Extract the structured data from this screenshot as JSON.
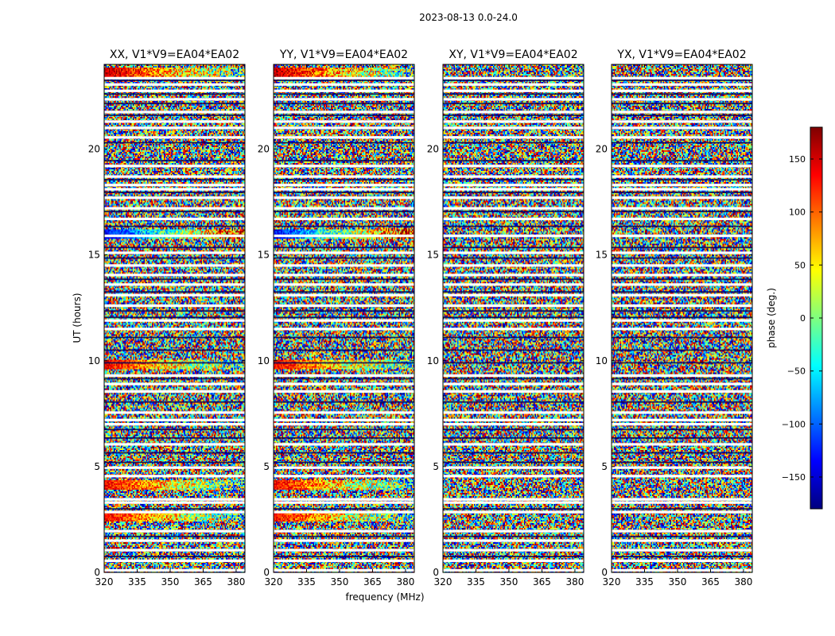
{
  "figure_title": "2023-08-13 0.0-24.0",
  "xlabel": "frequency (MHz)",
  "ylabel": "UT (hours)",
  "colorbar": {
    "label": "phase (deg.)",
    "range": [
      -180,
      180
    ],
    "ticks": [
      "150",
      "100",
      "50",
      "0",
      "−50",
      "−100",
      "−150"
    ],
    "tick_values": [
      150,
      100,
      50,
      0,
      -50,
      -100,
      -150
    ],
    "colormap": "jet",
    "colors": [
      "#00007f",
      "#0000ff",
      "#007fff",
      "#00ffff",
      "#7fff7f",
      "#ffff00",
      "#ff7f00",
      "#ff0000",
      "#7f0000"
    ]
  },
  "chart_data": [
    {
      "type": "heatmap",
      "title": "XX, V1*V9=EA04*EA02",
      "x_ticks": [
        "320",
        "335",
        "350",
        "365",
        "380"
      ],
      "x_tick_values": [
        320,
        335,
        350,
        365,
        380
      ],
      "xlim": [
        320,
        384
      ],
      "y_ticks": [
        "0",
        "5",
        "10",
        "15",
        "20"
      ],
      "y_tick_values": [
        0,
        5,
        10,
        15,
        20
      ],
      "ylim": [
        0,
        24
      ],
      "coherent_bands_hours": [
        23.6,
        16.0,
        9.8,
        4.1,
        2.6
      ]
    },
    {
      "type": "heatmap",
      "title": "YY, V1*V9=EA04*EA02",
      "x_ticks": [
        "320",
        "335",
        "350",
        "365",
        "380"
      ],
      "x_tick_values": [
        320,
        335,
        350,
        365,
        380
      ],
      "xlim": [
        320,
        384
      ],
      "y_ticks": [
        "0",
        "5",
        "10",
        "15",
        "20"
      ],
      "y_tick_values": [
        0,
        5,
        10,
        15,
        20
      ],
      "ylim": [
        0,
        24
      ],
      "coherent_bands_hours": [
        23.6,
        16.0,
        9.8,
        4.1,
        2.6
      ]
    },
    {
      "type": "heatmap",
      "title": "XY, V1*V9=EA04*EA02",
      "x_ticks": [
        "320",
        "335",
        "350",
        "365",
        "380"
      ],
      "x_tick_values": [
        320,
        335,
        350,
        365,
        380
      ],
      "xlim": [
        320,
        384
      ],
      "y_ticks": [
        "0",
        "5",
        "10",
        "15",
        "20"
      ],
      "y_tick_values": [
        0,
        5,
        10,
        15,
        20
      ],
      "ylim": [
        0,
        24
      ],
      "coherent_bands_hours": []
    },
    {
      "type": "heatmap",
      "title": "YX, V1*V9=EA04*EA02",
      "x_ticks": [
        "320",
        "335",
        "350",
        "365",
        "380"
      ],
      "x_tick_values": [
        320,
        335,
        350,
        365,
        380
      ],
      "xlim": [
        320,
        384
      ],
      "y_ticks": [
        "0",
        "5",
        "10",
        "15",
        "20"
      ],
      "y_tick_values": [
        0,
        5,
        10,
        15,
        20
      ],
      "ylim": [
        0,
        24
      ],
      "coherent_bands_hours": []
    }
  ],
  "gaps_hours": [
    0.1,
    0.55,
    1.05,
    1.5,
    1.95,
    2.85,
    3.3,
    3.45,
    4.55,
    4.95,
    6.05,
    7.0,
    7.2,
    7.55,
    8.55,
    8.9,
    9.3,
    11.5,
    11.9,
    12.6,
    13.1,
    13.6,
    14.05,
    14.5,
    15.1,
    15.9,
    16.7,
    17.2,
    17.7,
    18.1,
    18.3,
    18.7,
    19.2,
    20.55,
    21.0,
    21.3,
    21.75,
    22.35,
    22.75,
    23.05,
    23.35
  ],
  "dark_rows_hours": [
    0.75,
    1.7,
    3.0,
    5.2,
    5.65,
    6.35,
    6.75,
    8.05,
    9.15,
    9.9,
    10.5,
    11.1,
    12.05,
    12.35,
    13.25,
    13.85,
    14.85,
    15.35,
    16.35,
    17.05,
    17.95,
    18.55,
    19.45,
    20.3,
    21.6,
    22.15,
    22.6,
    23.25
  ]
}
